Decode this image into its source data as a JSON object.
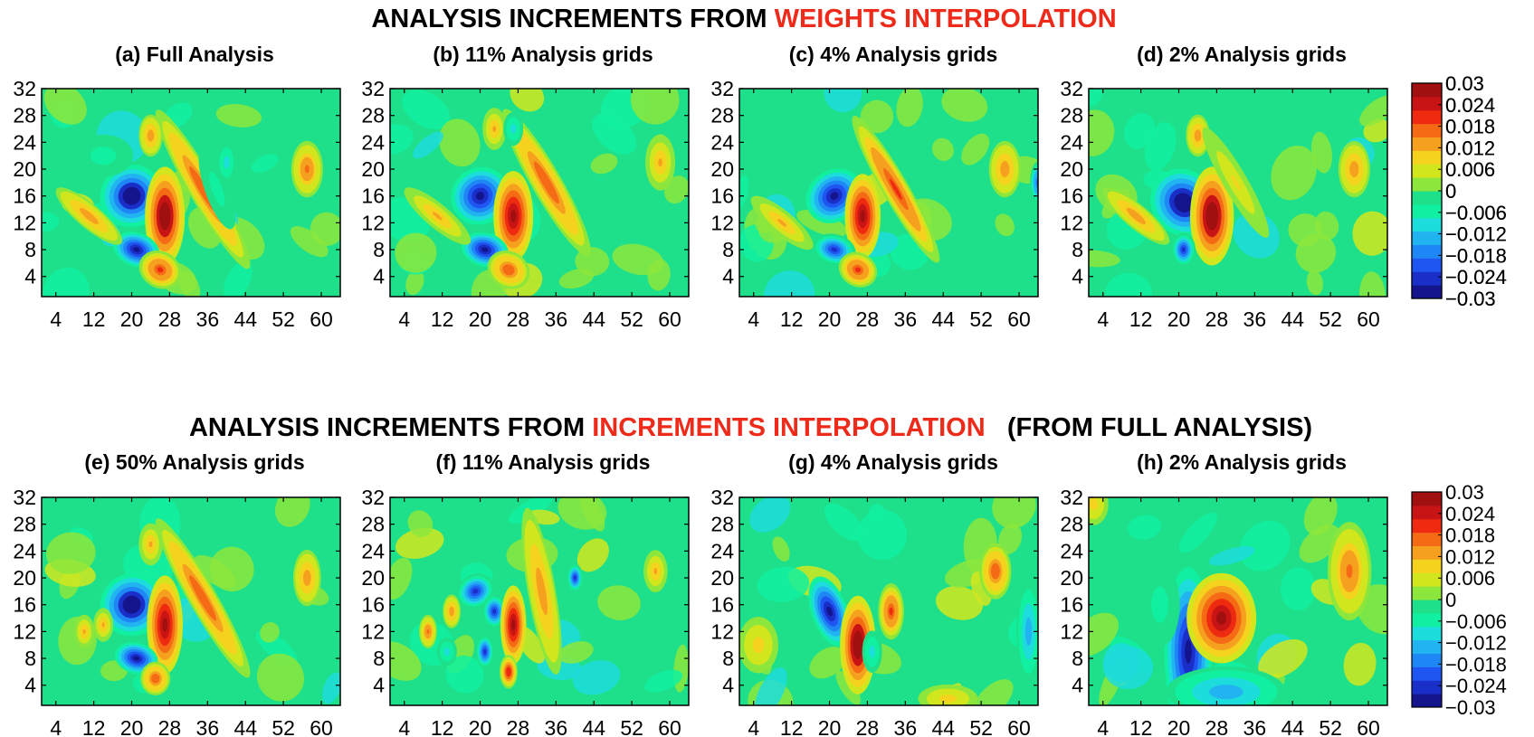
{
  "rows": [
    {
      "heading_prefix": "ANALYSIS INCREMENTS FROM ",
      "heading_highlight": "WEIGHTS INTERPOLATION",
      "heading_suffix": "",
      "panels": [
        {
          "title": "(a) Full Analysis"
        },
        {
          "title": "(b) 11% Analysis grids"
        },
        {
          "title": "(c) 4% Analysis grids"
        },
        {
          "title": "(d) 2% Analysis grids"
        }
      ]
    },
    {
      "heading_prefix": "ANALYSIS INCREMENTS FROM ",
      "heading_highlight": "INCREMENTS INTERPOLATION",
      "heading_suffix": "(FROM FULL ANALYSIS)",
      "panels": [
        {
          "title": "(e) 50% Analysis grids"
        },
        {
          "title": "(f) 11% Analysis grids"
        },
        {
          "title": "(g) 4% Analysis grids"
        },
        {
          "title": "(h) 2% Analysis grids"
        }
      ]
    }
  ],
  "colors": {
    "highlight": "#ee2a1a",
    "colormap": [
      "#14148c",
      "#1a2ec8",
      "#1f55f0",
      "#1e86f5",
      "#22b4f0",
      "#1ddcdc",
      "#10f0a0",
      "#1ee08a",
      "#8ce63c",
      "#d2e61e",
      "#f5d21e",
      "#f5a01e",
      "#f56a14",
      "#ee2a10",
      "#c81414",
      "#a01010"
    ]
  },
  "chart_data": [
    {
      "id": "a",
      "type": "heatmap",
      "x_ticks": [
        4,
        12,
        20,
        28,
        36,
        44,
        52,
        60
      ],
      "y_ticks": [
        4,
        8,
        12,
        16,
        20,
        24,
        28,
        32
      ],
      "xlim": [
        1,
        64
      ],
      "ylim": [
        1,
        32
      ],
      "colorbar_ticks": [
        "0.03",
        "0.024",
        "0.018",
        "0.012",
        "0.006",
        "0",
        "−0.006",
        "−0.012",
        "−0.018",
        "−0.024",
        "−0.03"
      ],
      "clim": [
        -0.03,
        0.03
      ],
      "features": [
        {
          "x": 20,
          "y": 16,
          "amp": -0.032,
          "sx": 3.2,
          "sy": 2.2,
          "rot": -40
        },
        {
          "x": 27,
          "y": 13,
          "amp": 0.032,
          "sx": 2.0,
          "sy": 3.5,
          "rot": 0
        },
        {
          "x": 21,
          "y": 8,
          "amp": -0.03,
          "sx": 2.4,
          "sy": 1.2,
          "rot": 20
        },
        {
          "x": 26,
          "y": 5,
          "amp": 0.02,
          "sx": 2.2,
          "sy": 1.3,
          "rot": 30
        },
        {
          "x": 35,
          "y": 17,
          "amp": 0.018,
          "sx": 1.4,
          "sy": 6.5,
          "rot": -30
        },
        {
          "x": 38,
          "y": 17,
          "amp": -0.006,
          "sx": 1.2,
          "sy": 3.0,
          "rot": -20
        },
        {
          "x": 11,
          "y": 13,
          "amp": 0.014,
          "sx": 1.2,
          "sy": 3.0,
          "rot": -50
        },
        {
          "x": 24,
          "y": 25,
          "amp": 0.014,
          "sx": 1.2,
          "sy": 1.5,
          "rot": 0
        },
        {
          "x": 57,
          "y": 20,
          "amp": 0.016,
          "sx": 1.6,
          "sy": 2.0,
          "rot": 0
        },
        {
          "x": 40,
          "y": 21,
          "amp": -0.01,
          "sx": 1.0,
          "sy": 1.5,
          "rot": 0
        },
        {
          "x": 14,
          "y": 22,
          "amp": -0.006,
          "sx": 3.0,
          "sy": 1.5,
          "rot": 0
        }
      ]
    },
    {
      "id": "b",
      "type": "heatmap",
      "x_ticks": [
        4,
        12,
        20,
        28,
        36,
        44,
        52,
        60
      ],
      "y_ticks": [
        4,
        8,
        12,
        16,
        20,
        24,
        28,
        32
      ],
      "xlim": [
        1,
        64
      ],
      "ylim": [
        1,
        32
      ],
      "colorbar_ticks": [],
      "clim": [
        -0.03,
        0.03
      ],
      "features": [
        {
          "x": 20,
          "y": 16,
          "amp": -0.03,
          "sx": 3.0,
          "sy": 2.0,
          "rot": -40
        },
        {
          "x": 27,
          "y": 13,
          "amp": 0.03,
          "sx": 2.0,
          "sy": 3.2,
          "rot": 0
        },
        {
          "x": 21,
          "y": 8,
          "amp": -0.028,
          "sx": 2.4,
          "sy": 1.2,
          "rot": 15
        },
        {
          "x": 26,
          "y": 5,
          "amp": 0.018,
          "sx": 2.2,
          "sy": 1.3,
          "rot": 30
        },
        {
          "x": 34,
          "y": 18,
          "amp": 0.018,
          "sx": 1.5,
          "sy": 6.0,
          "rot": -30
        },
        {
          "x": 11,
          "y": 13,
          "amp": 0.012,
          "sx": 1.2,
          "sy": 3.0,
          "rot": -50
        },
        {
          "x": 23,
          "y": 26,
          "amp": 0.012,
          "sx": 1.2,
          "sy": 1.5,
          "rot": 0
        },
        {
          "x": 58,
          "y": 21,
          "amp": 0.012,
          "sx": 1.5,
          "sy": 2.0,
          "rot": 0
        },
        {
          "x": 27,
          "y": 26,
          "amp": -0.01,
          "sx": 1.0,
          "sy": 1.2,
          "rot": 0
        }
      ]
    },
    {
      "id": "c",
      "type": "heatmap",
      "x_ticks": [
        4,
        12,
        20,
        28,
        36,
        44,
        52,
        60
      ],
      "y_ticks": [
        4,
        8,
        12,
        16,
        20,
        24,
        28,
        32
      ],
      "xlim": [
        1,
        64
      ],
      "ylim": [
        1,
        32
      ],
      "colorbar_ticks": [],
      "clim": [
        -0.03,
        0.03
      ],
      "features": [
        {
          "x": 21,
          "y": 16,
          "amp": -0.03,
          "sx": 3.0,
          "sy": 1.8,
          "rot": -40
        },
        {
          "x": 27,
          "y": 13,
          "amp": 0.03,
          "sx": 1.8,
          "sy": 3.0,
          "rot": 0
        },
        {
          "x": 21,
          "y": 8,
          "amp": -0.026,
          "sx": 2.2,
          "sy": 1.1,
          "rot": 15
        },
        {
          "x": 26,
          "y": 5,
          "amp": 0.02,
          "sx": 2.0,
          "sy": 1.2,
          "rot": 30
        },
        {
          "x": 34,
          "y": 17,
          "amp": 0.02,
          "sx": 1.3,
          "sy": 6.0,
          "rot": -30
        },
        {
          "x": 10,
          "y": 12,
          "amp": 0.012,
          "sx": 1.2,
          "sy": 2.8,
          "rot": -50
        },
        {
          "x": 57,
          "y": 20,
          "amp": 0.014,
          "sx": 1.6,
          "sy": 2.0,
          "rot": 0
        },
        {
          "x": 64,
          "y": 18,
          "amp": -0.02,
          "sx": 0.8,
          "sy": 1.5,
          "rot": 0
        }
      ]
    },
    {
      "id": "d",
      "type": "heatmap",
      "x_ticks": [
        4,
        12,
        20,
        28,
        36,
        44,
        52,
        60
      ],
      "y_ticks": [
        4,
        8,
        12,
        16,
        20,
        24,
        28,
        32
      ],
      "xlim": [
        1,
        64
      ],
      "ylim": [
        1,
        32
      ],
      "colorbar_ticks": [
        "0.03",
        "0.024",
        "0.018",
        "0.012",
        "0.006",
        "0",
        "−0.006",
        "−0.012",
        "−0.018",
        "−0.024",
        "−0.03"
      ],
      "clim": [
        -0.03,
        0.03
      ],
      "features": [
        {
          "x": 21,
          "y": 15,
          "amp": -0.032,
          "sx": 3.2,
          "sy": 2.5,
          "rot": -40
        },
        {
          "x": 27,
          "y": 13,
          "amp": 0.032,
          "sx": 2.2,
          "sy": 3.5,
          "rot": 0
        },
        {
          "x": 21,
          "y": 8,
          "amp": -0.024,
          "sx": 1.2,
          "sy": 1.2,
          "rot": 0
        },
        {
          "x": 11,
          "y": 13,
          "amp": 0.014,
          "sx": 1.2,
          "sy": 3.0,
          "rot": -50
        },
        {
          "x": 24,
          "y": 25,
          "amp": 0.014,
          "sx": 1.2,
          "sy": 1.5,
          "rot": 0
        },
        {
          "x": 57,
          "y": 20,
          "amp": 0.014,
          "sx": 1.6,
          "sy": 2.0,
          "rot": 0
        },
        {
          "x": 32,
          "y": 18,
          "amp": 0.008,
          "sx": 1.2,
          "sy": 4.5,
          "rot": -30
        }
      ]
    },
    {
      "id": "e",
      "type": "heatmap",
      "x_ticks": [
        4,
        12,
        20,
        28,
        36,
        44,
        52,
        60
      ],
      "y_ticks": [
        4,
        8,
        12,
        16,
        20,
        24,
        28,
        32
      ],
      "xlim": [
        1,
        64
      ],
      "ylim": [
        1,
        32
      ],
      "colorbar_ticks": [],
      "clim": [
        -0.03,
        0.03
      ],
      "features": [
        {
          "x": 20,
          "y": 16,
          "amp": -0.032,
          "sx": 3.2,
          "sy": 2.2,
          "rot": -40
        },
        {
          "x": 27,
          "y": 13,
          "amp": 0.03,
          "sx": 1.8,
          "sy": 3.5,
          "rot": 0
        },
        {
          "x": 21,
          "y": 8,
          "amp": -0.028,
          "sx": 2.2,
          "sy": 1.1,
          "rot": 15
        },
        {
          "x": 25,
          "y": 5,
          "amp": 0.018,
          "sx": 1.5,
          "sy": 1.2,
          "rot": 0
        },
        {
          "x": 35,
          "y": 17,
          "amp": 0.018,
          "sx": 1.4,
          "sy": 6.5,
          "rot": -30
        },
        {
          "x": 10,
          "y": 12,
          "amp": 0.012,
          "sx": 1.0,
          "sy": 1.2,
          "rot": 0
        },
        {
          "x": 14,
          "y": 13,
          "amp": 0.012,
          "sx": 1.0,
          "sy": 1.2,
          "rot": 0
        },
        {
          "x": 24,
          "y": 25,
          "amp": 0.012,
          "sx": 1.2,
          "sy": 1.5,
          "rot": 0
        },
        {
          "x": 57,
          "y": 20,
          "amp": 0.014,
          "sx": 1.4,
          "sy": 2.0,
          "rot": 0
        }
      ]
    },
    {
      "id": "f",
      "type": "heatmap",
      "x_ticks": [
        4,
        12,
        20,
        28,
        36,
        44,
        52,
        60
      ],
      "y_ticks": [
        4,
        8,
        12,
        16,
        20,
        24,
        28,
        32
      ],
      "xlim": [
        1,
        64
      ],
      "ylim": [
        1,
        32
      ],
      "colorbar_ticks": [],
      "clim": [
        -0.03,
        0.03
      ],
      "features": [
        {
          "x": 19,
          "y": 18,
          "amp": -0.026,
          "sx": 2.0,
          "sy": 1.2,
          "rot": -30
        },
        {
          "x": 23,
          "y": 15,
          "amp": -0.024,
          "sx": 1.2,
          "sy": 1.2,
          "rot": 0
        },
        {
          "x": 27,
          "y": 13,
          "amp": 0.03,
          "sx": 1.3,
          "sy": 2.8,
          "rot": 0
        },
        {
          "x": 21,
          "y": 9,
          "amp": -0.024,
          "sx": 0.9,
          "sy": 1.2,
          "rot": 0
        },
        {
          "x": 26,
          "y": 6,
          "amp": 0.022,
          "sx": 0.9,
          "sy": 1.2,
          "rot": 0
        },
        {
          "x": 33,
          "y": 18,
          "amp": 0.014,
          "sx": 1.4,
          "sy": 6.0,
          "rot": -10
        },
        {
          "x": 40,
          "y": 20,
          "amp": -0.024,
          "sx": 0.8,
          "sy": 1.0,
          "rot": 0
        },
        {
          "x": 9,
          "y": 12,
          "amp": 0.016,
          "sx": 0.9,
          "sy": 1.2,
          "rot": 0
        },
        {
          "x": 14,
          "y": 15,
          "amp": 0.014,
          "sx": 0.9,
          "sy": 1.2,
          "rot": 0
        },
        {
          "x": 57,
          "y": 21,
          "amp": 0.012,
          "sx": 1.2,
          "sy": 1.5,
          "rot": 0
        },
        {
          "x": 13,
          "y": 9,
          "amp": -0.01,
          "sx": 1.0,
          "sy": 1.0,
          "rot": 0
        }
      ]
    },
    {
      "id": "g",
      "type": "heatmap",
      "x_ticks": [
        4,
        12,
        20,
        28,
        36,
        44,
        52,
        60
      ],
      "y_ticks": [
        4,
        8,
        12,
        16,
        20,
        24,
        28,
        32
      ],
      "xlim": [
        1,
        64
      ],
      "ylim": [
        1,
        32
      ],
      "colorbar_ticks": [],
      "clim": [
        -0.03,
        0.03
      ],
      "features": [
        {
          "x": 20,
          "y": 15,
          "amp": -0.03,
          "sx": 1.8,
          "sy": 2.6,
          "rot": -20
        },
        {
          "x": 26,
          "y": 10,
          "amp": 0.032,
          "sx": 1.8,
          "sy": 3.5,
          "rot": 0
        },
        {
          "x": 33,
          "y": 15,
          "amp": 0.02,
          "sx": 1.3,
          "sy": 2.0,
          "rot": 0
        },
        {
          "x": 55,
          "y": 21,
          "amp": 0.018,
          "sx": 1.6,
          "sy": 2.0,
          "rot": 0
        },
        {
          "x": 29,
          "y": 9,
          "amp": -0.01,
          "sx": 1.0,
          "sy": 1.5,
          "rot": 0
        },
        {
          "x": 62,
          "y": 12,
          "amp": -0.014,
          "sx": 1.2,
          "sy": 3.5,
          "rot": 0
        },
        {
          "x": 5,
          "y": 10,
          "amp": 0.01,
          "sx": 2.0,
          "sy": 2.0,
          "rot": 0
        },
        {
          "x": 45,
          "y": 2,
          "amp": 0.01,
          "sx": 3.0,
          "sy": 1.0,
          "rot": 0
        }
      ]
    },
    {
      "id": "h",
      "type": "heatmap",
      "x_ticks": [
        4,
        12,
        20,
        28,
        36,
        44,
        52,
        60
      ],
      "y_ticks": [
        4,
        8,
        12,
        16,
        20,
        24,
        28,
        32
      ],
      "xlim": [
        1,
        64
      ],
      "ylim": [
        1,
        32
      ],
      "colorbar_ticks": [
        "0.03",
        "0.024",
        "0.018",
        "0.012",
        "0.006",
        "0",
        "−0.006",
        "−0.012",
        "−0.018",
        "−0.024",
        "−0.03"
      ],
      "clim": [
        -0.03,
        0.03
      ],
      "features": [
        {
          "x": 22,
          "y": 9,
          "amp": -0.03,
          "sx": 2.4,
          "sy": 6.0,
          "rot": 0
        },
        {
          "x": 30,
          "y": 3,
          "amp": -0.014,
          "sx": 6.0,
          "sy": 1.8,
          "rot": 0
        },
        {
          "x": 29,
          "y": 14,
          "amp": 0.028,
          "sx": 3.5,
          "sy": 3.2,
          "rot": 0
        },
        {
          "x": 56,
          "y": 21,
          "amp": 0.016,
          "sx": 2.2,
          "sy": 3.5,
          "rot": 0
        },
        {
          "x": 16,
          "y": 16,
          "amp": -0.006,
          "sx": 2.0,
          "sy": 3.0,
          "rot": 0
        },
        {
          "x": 2,
          "y": 31,
          "amp": 0.01,
          "sx": 1.5,
          "sy": 1.5,
          "rot": 0
        }
      ]
    }
  ]
}
